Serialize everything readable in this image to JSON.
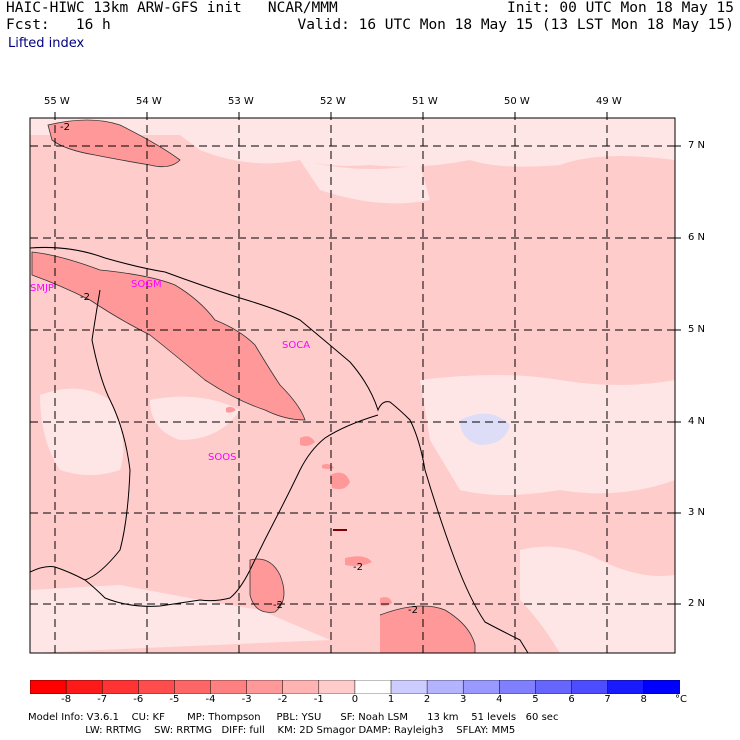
{
  "header": {
    "title": "HAIC-HIWC 13km ARW-GFS init   NCAR/MMM",
    "fcst": "Fcst:   16 h",
    "init": "Init: 00 UTC Mon 18 May 15",
    "valid": "Valid: 16 UTC Mon 18 May 15 (13 LST Mon 18 May 15)",
    "field": "Lifted index"
  },
  "longitudes": [
    "55 W",
    "54 W",
    "53 W",
    "52 W",
    "51 W",
    "50 W",
    "49 W"
  ],
  "latitudes": [
    "7 N",
    "6 N",
    "5 N",
    "4 N",
    "3 N",
    "2 N"
  ],
  "stations": [
    "SMJP",
    "SOGM",
    "SOCA",
    "SOOS"
  ],
  "contour_labels": [
    "-2",
    "-2",
    "-2",
    "-2",
    "-2"
  ],
  "colorbar": {
    "ticks": [
      "-8",
      "-7",
      "-6",
      "-5",
      "-4",
      "-3",
      "-2",
      "-1",
      "0",
      "1",
      "2",
      "3",
      "4",
      "5",
      "6",
      "7",
      "8"
    ],
    "unit": "°C",
    "colors": [
      "#ff0000",
      "#ff1a1a",
      "#ff3333",
      "#ff4d4d",
      "#ff6666",
      "#ff8080",
      "#ff9999",
      "#ffb3b3",
      "#ffcccc",
      "#ffffff",
      "#ccccff",
      "#b3b3ff",
      "#9999ff",
      "#8080ff",
      "#6666ff",
      "#4d4dff",
      "#1a1aff",
      "#0000ff"
    ]
  },
  "model_info": {
    "line1": "Model Info: V3.6.1    CU: KF       MP: Thompson     PBL: YSU      SF: Noah LSM      13 km    51 levels   60 sec",
    "line2": "                  LW: RRTMG    SW: RRTMG   DIFF: full    KM: 2D Smagor DAMP: Rayleigh3    SFLAY: MM5"
  }
}
